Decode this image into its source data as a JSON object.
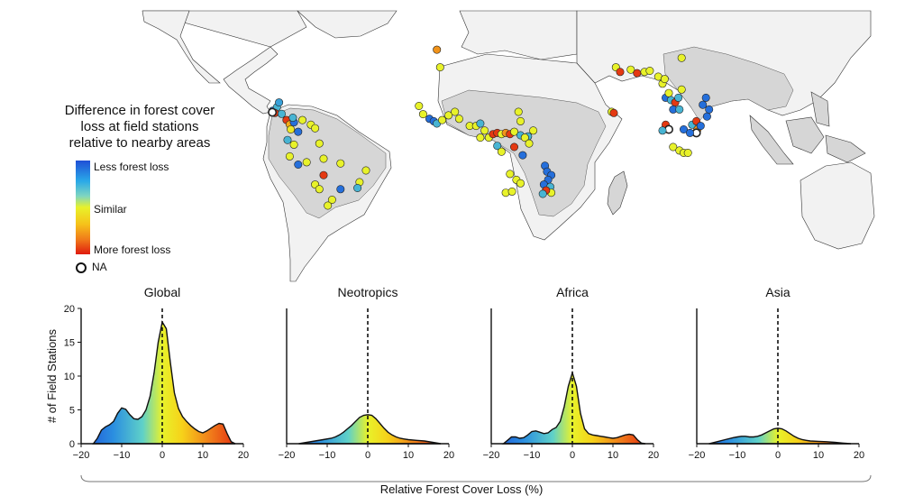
{
  "legend": {
    "title_lines": [
      "Difference in forest cover",
      "loss at field stations",
      "relative to nearby areas"
    ],
    "top_label": "Less forest loss",
    "middle_label": "Similar",
    "bottom_label": "More forest loss",
    "na_label": "NA"
  },
  "colors": {
    "less_loss": "#1f4fd6",
    "less_loss_light": "#2aa9e8",
    "similar": "#e8f22a",
    "more_loss_orange": "#f08a1a",
    "more_loss": "#e01a0f",
    "land": "#f2f2f2",
    "tropical_forest": "#d6d6d6"
  },
  "map": {
    "points": [
      {
        "lon": -84,
        "lat": 10.5,
        "c": 0.1
      },
      {
        "lon": -82,
        "lat": 12,
        "c": 0.3
      },
      {
        "lon": -83,
        "lat": 9.5,
        "c": 0.95
      },
      {
        "lon": -84.2,
        "lat": 9.8,
        "n": true
      },
      {
        "lon": -81,
        "lat": 14,
        "c": 0.25
      },
      {
        "lon": -79.8,
        "lat": 9.1,
        "c": 0.3
      },
      {
        "lon": -77.5,
        "lat": 6.5,
        "c": 0.95
      },
      {
        "lon": -76,
        "lat": 4.6,
        "c": 0.75
      },
      {
        "lon": -74,
        "lat": 5.5,
        "c": 0.1
      },
      {
        "lon": -75.5,
        "lat": 2.5,
        "c": 0.55
      },
      {
        "lon": -74.5,
        "lat": 7.5,
        "c": 0.3
      },
      {
        "lon": -70,
        "lat": 6.5,
        "c": 0.5
      },
      {
        "lon": -66,
        "lat": 4.5,
        "c": 0.5
      },
      {
        "lon": -64,
        "lat": 3,
        "c": 0.5
      },
      {
        "lon": -72,
        "lat": 1.5,
        "c": 0.1
      },
      {
        "lon": -77,
        "lat": -2,
        "c": 0.3
      },
      {
        "lon": -74,
        "lat": -4,
        "c": 0.5
      },
      {
        "lon": -76,
        "lat": -9,
        "c": 0.5
      },
      {
        "lon": -72,
        "lat": -12.5,
        "c": 0.1
      },
      {
        "lon": -68,
        "lat": -11.5,
        "c": 0.5
      },
      {
        "lon": -62,
        "lat": -3.5,
        "c": 0.5
      },
      {
        "lon": -60,
        "lat": -10,
        "c": 0.5
      },
      {
        "lon": -52,
        "lat": -12,
        "c": 0.5
      },
      {
        "lon": -43,
        "lat": -20,
        "c": 0.5
      },
      {
        "lon": -44,
        "lat": -22.5,
        "c": 0.3
      },
      {
        "lon": -40,
        "lat": -15,
        "c": 0.5
      },
      {
        "lon": -52,
        "lat": -23,
        "c": 0.1
      },
      {
        "lon": -56,
        "lat": -27.5,
        "c": 0.5
      },
      {
        "lon": -58,
        "lat": -30,
        "c": 0.5
      },
      {
        "lon": -64,
        "lat": -21,
        "c": 0.5
      },
      {
        "lon": -62,
        "lat": -23,
        "c": 0.5
      },
      {
        "lon": -60,
        "lat": -17,
        "c": 0.95
      },
      {
        "lon": -6.5,
        "lat": 36.5,
        "c": 0.8
      },
      {
        "lon": -5,
        "lat": 29,
        "c": 0.5
      },
      {
        "lon": -15,
        "lat": 12.5,
        "c": 0.5
      },
      {
        "lon": -13,
        "lat": 9,
        "c": 0.5
      },
      {
        "lon": -10,
        "lat": 7,
        "c": 0.1
      },
      {
        "lon": -8,
        "lat": 6,
        "c": 0.1
      },
      {
        "lon": -6.5,
        "lat": 5,
        "c": 0.3
      },
      {
        "lon": -4,
        "lat": 6.5,
        "c": 0.5
      },
      {
        "lon": -1,
        "lat": 8.5,
        "c": 0.5
      },
      {
        "lon": 2,
        "lat": 10,
        "c": 0.5
      },
      {
        "lon": 4,
        "lat": 7,
        "c": 0.5
      },
      {
        "lon": 9,
        "lat": 4,
        "c": 0.5
      },
      {
        "lon": 12,
        "lat": 4,
        "c": 0.5
      },
      {
        "lon": 14,
        "lat": 5,
        "c": 0.3
      },
      {
        "lon": 16,
        "lat": 2,
        "c": 0.5
      },
      {
        "lon": 14,
        "lat": -1,
        "c": 0.5
      },
      {
        "lon": 18,
        "lat": -1,
        "c": 0.5
      },
      {
        "lon": 20,
        "lat": 0.5,
        "c": 0.95
      },
      {
        "lon": 22,
        "lat": 1,
        "c": 0.95
      },
      {
        "lon": 24,
        "lat": 0.5,
        "c": 0.5
      },
      {
        "lon": 26,
        "lat": 1,
        "c": 0.8
      },
      {
        "lon": 28,
        "lat": 0.5,
        "c": 0.95
      },
      {
        "lon": 30,
        "lat": 1.5,
        "c": 0.5
      },
      {
        "lon": 33,
        "lat": 0,
        "c": 0.3
      },
      {
        "lon": 36.5,
        "lat": -0.5,
        "c": 0.3
      },
      {
        "lon": 32,
        "lat": 10,
        "c": 0.5
      },
      {
        "lon": 33,
        "lat": 6,
        "c": 0.5
      },
      {
        "lon": 35,
        "lat": -1,
        "c": 0.5
      },
      {
        "lon": 37,
        "lat": -3.5,
        "c": 0.5
      },
      {
        "lon": 39,
        "lat": 2,
        "c": 0.5
      },
      {
        "lon": 22,
        "lat": -4.5,
        "c": 0.3
      },
      {
        "lon": 24,
        "lat": -7,
        "c": 0.5
      },
      {
        "lon": 30,
        "lat": -5,
        "c": 0.95
      },
      {
        "lon": 34,
        "lat": -8.5,
        "c": 0.1
      },
      {
        "lon": 28,
        "lat": -16.5,
        "c": 0.5
      },
      {
        "lon": 31,
        "lat": -19,
        "c": 0.5
      },
      {
        "lon": 33,
        "lat": -20.5,
        "c": 0.5
      },
      {
        "lon": 26,
        "lat": -24.5,
        "c": 0.5
      },
      {
        "lon": 29,
        "lat": -24,
        "c": 0.5
      },
      {
        "lon": 44.5,
        "lat": -13,
        "c": 0.1
      },
      {
        "lon": 45.5,
        "lat": -15.5,
        "c": 0.1
      },
      {
        "lon": 47.5,
        "lat": -17,
        "c": 0.1
      },
      {
        "lon": 46,
        "lat": -19,
        "c": 0.1
      },
      {
        "lon": 44,
        "lat": -21,
        "c": 0.1
      },
      {
        "lon": 47,
        "lat": -22,
        "c": 0.3
      },
      {
        "lon": 47.5,
        "lat": -24.5,
        "c": 0.5
      },
      {
        "lon": 45,
        "lat": -23.5,
        "c": 0.95
      },
      {
        "lon": 43.5,
        "lat": -25,
        "c": 0.3
      },
      {
        "lon": 78,
        "lat": 29,
        "c": 0.5
      },
      {
        "lon": 80,
        "lat": 27,
        "c": 0.95
      },
      {
        "lon": 85,
        "lat": 28,
        "c": 0.5
      },
      {
        "lon": 88,
        "lat": 26.5,
        "c": 0.95
      },
      {
        "lon": 91.5,
        "lat": 27,
        "c": 0.5
      },
      {
        "lon": 94,
        "lat": 27.5,
        "c": 0.5
      },
      {
        "lon": 98,
        "lat": 25,
        "c": 0.5
      },
      {
        "lon": 100,
        "lat": 22,
        "c": 0.5
      },
      {
        "lon": 101,
        "lat": 24,
        "c": 0.5
      },
      {
        "lon": 101.5,
        "lat": 16,
        "c": 0.1
      },
      {
        "lon": 103,
        "lat": 18,
        "c": 0.5
      },
      {
        "lon": 104,
        "lat": 15,
        "c": 0.3
      },
      {
        "lon": 106,
        "lat": 14,
        "c": 0.95
      },
      {
        "lon": 107.5,
        "lat": 16,
        "c": 0.3
      },
      {
        "lon": 105,
        "lat": 11,
        "c": 0.1
      },
      {
        "lon": 108,
        "lat": 11,
        "c": 0.3
      },
      {
        "lon": 109,
        "lat": 19.5,
        "c": 0.5
      },
      {
        "lon": 109,
        "lat": 33,
        "c": 0.5
      },
      {
        "lon": 76,
        "lat": 10,
        "c": 0.5
      },
      {
        "lon": 77,
        "lat": 9.5,
        "c": 0.95
      },
      {
        "lon": 101.5,
        "lat": 4.5,
        "c": 0.95
      },
      {
        "lon": 103,
        "lat": 2.5,
        "n": true
      },
      {
        "lon": 100,
        "lat": 2,
        "c": 0.3
      },
      {
        "lon": 110,
        "lat": 2.5,
        "c": 0.1
      },
      {
        "lon": 114,
        "lat": 4.5,
        "c": 0.3
      },
      {
        "lon": 116,
        "lat": 6,
        "c": 0.95
      },
      {
        "lon": 116.5,
        "lat": 2.5,
        "c": 0.8
      },
      {
        "lon": 116,
        "lat": 1,
        "n": true
      },
      {
        "lon": 118,
        "lat": 4,
        "c": 0.1
      },
      {
        "lon": 121,
        "lat": 8,
        "c": 0.1
      },
      {
        "lon": 122,
        "lat": 11,
        "c": 0.1
      },
      {
        "lon": 119,
        "lat": 13,
        "c": 0.1
      },
      {
        "lon": 120.5,
        "lat": 16,
        "c": 0.1
      },
      {
        "lon": 113,
        "lat": 1,
        "c": 0.1
      },
      {
        "lon": 105,
        "lat": -5,
        "c": 0.5
      },
      {
        "lon": 108,
        "lat": -6.5,
        "c": 0.5
      },
      {
        "lon": 110,
        "lat": -7.5,
        "c": 0.5
      },
      {
        "lon": 112,
        "lat": -7.5,
        "c": 0.5
      }
    ]
  },
  "shared_xlabel": "Relative Forest Cover Loss (%)",
  "chart_data": [
    {
      "type": "area",
      "title": "Global",
      "ylabel": "# of Field Stations",
      "xlim": [
        -20,
        20
      ],
      "ylim": [
        0,
        20
      ],
      "xticks": [
        -20,
        -10,
        0,
        10,
        20
      ],
      "yticks": [
        0,
        5,
        10,
        15,
        20
      ],
      "reference_line_x": 0,
      "x": [
        -17,
        -16,
        -15,
        -14,
        -13,
        -12,
        -11,
        -10,
        -9,
        -8,
        -7,
        -6,
        -5,
        -4,
        -3,
        -2,
        -1,
        0,
        1,
        2,
        3,
        4,
        5,
        6,
        7,
        8,
        9,
        10,
        11,
        12,
        13,
        14,
        15,
        16,
        17,
        18
      ],
      "y": [
        0,
        0.8,
        2,
        2.5,
        2.8,
        3.3,
        4.5,
        5.3,
        5.1,
        4.3,
        3.7,
        3.6,
        4,
        5,
        7,
        10.5,
        15,
        18,
        17,
        12,
        7.5,
        5.2,
        4,
        3.3,
        2.7,
        2.2,
        1.8,
        1.6,
        1.9,
        2.3,
        2.7,
        3,
        2.9,
        1.5,
        0.3,
        0
      ]
    },
    {
      "type": "area",
      "title": "Neotropics",
      "xlim": [
        -20,
        20
      ],
      "ylim": [
        0,
        20
      ],
      "xticks": [
        -20,
        -10,
        0,
        10,
        20
      ],
      "reference_line_x": 0,
      "x": [
        -17,
        -15,
        -13,
        -11,
        -9,
        -8,
        -7,
        -6,
        -5,
        -4,
        -3,
        -2,
        -1,
        0,
        1,
        2,
        3,
        4,
        5,
        6,
        7,
        8,
        9,
        10,
        12,
        14,
        16,
        18
      ],
      "y": [
        0,
        0.2,
        0.4,
        0.6,
        0.8,
        1,
        1.3,
        1.7,
        2.2,
        2.7,
        3.3,
        3.9,
        4.2,
        4.3,
        4.2,
        3.7,
        3,
        2.3,
        1.7,
        1.3,
        1,
        0.8,
        0.7,
        0.6,
        0.5,
        0.4,
        0.2,
        0
      ]
    },
    {
      "type": "area",
      "title": "Africa",
      "xlim": [
        -20,
        20
      ],
      "ylim": [
        0,
        20
      ],
      "xticks": [
        -20,
        -10,
        0,
        10,
        20
      ],
      "reference_line_x": 0,
      "x": [
        -17,
        -16,
        -15,
        -14,
        -13,
        -12,
        -11,
        -10,
        -9,
        -8,
        -7,
        -6,
        -5,
        -4,
        -3,
        -2,
        -1,
        0,
        1,
        2,
        3,
        4,
        5,
        6,
        7,
        8,
        9,
        10,
        11,
        12,
        13,
        14,
        15,
        16,
        17,
        18
      ],
      "y": [
        0,
        0.5,
        1,
        1,
        0.8,
        0.9,
        1.3,
        1.8,
        1.9,
        1.7,
        1.5,
        1.6,
        2.1,
        2.4,
        3.3,
        5.5,
        8.5,
        10.5,
        8.5,
        4.5,
        2.2,
        1.5,
        1.3,
        1.2,
        1.1,
        1,
        0.9,
        0.8,
        0.9,
        1.1,
        1.3,
        1.4,
        1.3,
        0.6,
        0.1,
        0
      ]
    },
    {
      "type": "area",
      "title": "Asia",
      "xlim": [
        -20,
        20
      ],
      "ylim": [
        0,
        20
      ],
      "xticks": [
        -20,
        -10,
        0,
        10,
        20
      ],
      "reference_line_x": 0,
      "x": [
        -17,
        -15,
        -13,
        -11,
        -10,
        -9,
        -8,
        -7,
        -6,
        -5,
        -4,
        -3,
        -2,
        -1,
        0,
        1,
        2,
        3,
        4,
        5,
        6,
        7,
        8,
        10,
        12,
        14,
        16,
        18
      ],
      "y": [
        0,
        0.3,
        0.6,
        0.9,
        1,
        1.1,
        1.1,
        1,
        1,
        1.1,
        1.3,
        1.6,
        1.9,
        2.2,
        2.3,
        2.2,
        1.9,
        1.5,
        1.1,
        0.8,
        0.6,
        0.5,
        0.4,
        0.35,
        0.3,
        0.2,
        0.1,
        0
      ]
    }
  ]
}
